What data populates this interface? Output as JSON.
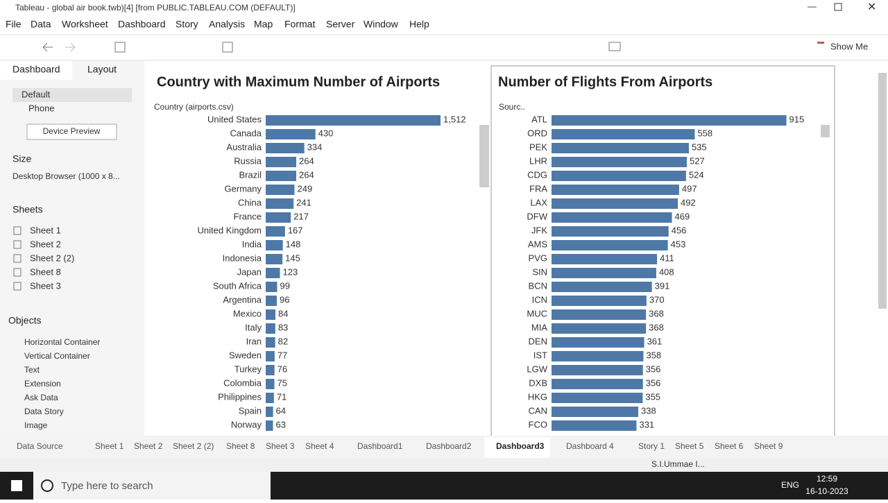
{
  "window": {
    "title": "Tableau - global air book.twb)[4] [from PUBLIC.TABLEAU.COM (DEFAULT)]"
  },
  "menu": [
    "File",
    "Data",
    "Worksheet",
    "Dashboard",
    "Story",
    "Analysis",
    "Map",
    "Format",
    "Server",
    "Window",
    "Help"
  ],
  "toolbar": {
    "show_me": "Show Me"
  },
  "side_panel": {
    "tabs": [
      "Dashboard",
      "Layout"
    ],
    "devices": [
      "Default",
      "Phone"
    ],
    "device_preview": "Device Preview",
    "size_heading": "Size",
    "size_value": "Desktop Browser (1000 x 8...",
    "sheets_heading": "Sheets",
    "sheets": [
      "Sheet 1",
      "Sheet 2",
      "Sheet 2 (2)",
      "Sheet 8",
      "Sheet 3"
    ],
    "objects_heading": "Objects",
    "objects": [
      "Horizontal Container",
      "Vertical Container",
      "Text",
      "Extension",
      "Ask Data",
      "Data Story",
      "Image"
    ]
  },
  "chart_data": [
    {
      "type": "bar",
      "title": "Country with Maximum Number of Airports",
      "axis_header": "Country (airports.csv)",
      "color": "#4e79a7",
      "xlim": [
        0,
        1800
      ],
      "categories": [
        "United States",
        "Canada",
        "Australia",
        "Russia",
        "Brazil",
        "Germany",
        "China",
        "France",
        "United Kingdom",
        "India",
        "Indonesia",
        "Japan",
        "South Africa",
        "Argentina",
        "Mexico",
        "Italy",
        "Iran",
        "Sweden",
        "Turkey",
        "Colombia",
        "Philippines",
        "Spain",
        "Norway"
      ],
      "values": [
        1512,
        430,
        334,
        264,
        264,
        249,
        241,
        217,
        167,
        148,
        145,
        123,
        99,
        96,
        84,
        83,
        82,
        77,
        76,
        75,
        71,
        64,
        63
      ],
      "value_labels": [
        "1,512",
        "430",
        "334",
        "264",
        "264",
        "249",
        "241",
        "217",
        "167",
        "148",
        "145",
        "123",
        "99",
        "96",
        "84",
        "83",
        "82",
        "77",
        "76",
        "75",
        "71",
        "64",
        "63"
      ]
    },
    {
      "type": "bar",
      "title": "Number of Flights From Airports",
      "axis_header": "Sourc..",
      "color": "#4e79a7",
      "xlim": [
        0,
        1000
      ],
      "categories": [
        "ATL",
        "ORD",
        "PEK",
        "LHR",
        "CDG",
        "FRA",
        "LAX",
        "DFW",
        "JFK",
        "AMS",
        "PVG",
        "SIN",
        "BCN",
        "ICN",
        "MUC",
        "MIA",
        "DEN",
        "IST",
        "LGW",
        "DXB",
        "HKG",
        "CAN",
        "FCO"
      ],
      "values": [
        915,
        558,
        535,
        527,
        524,
        497,
        492,
        469,
        456,
        453,
        411,
        408,
        391,
        370,
        368,
        368,
        361,
        358,
        356,
        356,
        355,
        338,
        331
      ]
    }
  ],
  "tabs": [
    "Data Source",
    "Sheet 1",
    "Sheet 2",
    "Sheet 2 (2)",
    "Sheet 8",
    "Sheet 3",
    "Sheet 4",
    "Dashboard1",
    "Dashboard2",
    "Dashboard3",
    "Dashboard 4",
    "Story 1",
    "Sheet 5",
    "Sheet 6",
    "Sheet 9"
  ],
  "status": {
    "user": "S.I.Ummae I..."
  },
  "taskbar": {
    "search": "Type here to search",
    "language": "ENG",
    "time": "12:59",
    "date": "16-10-2023"
  }
}
